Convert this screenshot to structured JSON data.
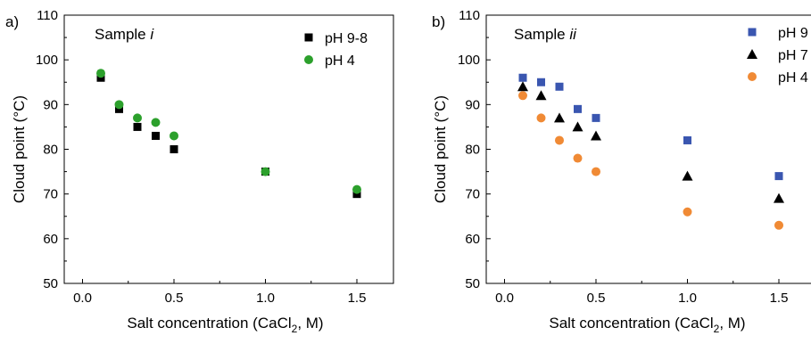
{
  "chart_data": [
    {
      "type": "scatter",
      "panel_label": "a)",
      "annotation": "Sample ",
      "annotation_italic": "i",
      "xlabel": "Salt concentration (CaCl",
      "xlabel_subscript": "2",
      "xlabel_suffix": ", M)",
      "ylabel": "Cloud point (°C)",
      "xlim": [
        -0.1,
        1.7
      ],
      "ylim": [
        50,
        110
      ],
      "xticks": [
        0.0,
        0.5,
        1.0,
        1.5
      ],
      "xtick_labels": [
        "0.0",
        "0.5",
        "1.0",
        "1.5"
      ],
      "yticks": [
        50,
        60,
        70,
        80,
        90,
        100,
        110
      ],
      "ytick_labels": [
        "50",
        "60",
        "70",
        "80",
        "90",
        "100",
        "110"
      ],
      "legend_position": "top-right",
      "grid": false,
      "series": [
        {
          "name": "pH 9-8",
          "marker": "square",
          "color": "#000000",
          "x": [
            0.1,
            0.2,
            0.3,
            0.4,
            0.5,
            1.0,
            1.5
          ],
          "y": [
            96,
            89,
            85,
            83,
            80,
            75,
            70
          ]
        },
        {
          "name": "pH 4",
          "marker": "circle",
          "color": "#2ca02c",
          "x": [
            0.1,
            0.2,
            0.3,
            0.4,
            0.5,
            1.0,
            1.5
          ],
          "y": [
            97,
            90,
            87,
            86,
            83,
            75,
            71
          ]
        }
      ]
    },
    {
      "type": "scatter",
      "panel_label": "b)",
      "annotation": "Sample ",
      "annotation_italic": "ii",
      "xlabel": "Salt concentration (CaCl",
      "xlabel_subscript": "2",
      "xlabel_suffix": ", M)",
      "ylabel": "Cloud point (°C)",
      "xlim": [
        -0.1,
        1.7
      ],
      "ylim": [
        50,
        110
      ],
      "xticks": [
        0.0,
        0.5,
        1.0,
        1.5
      ],
      "xtick_labels": [
        "0.0",
        "0.5",
        "1.0",
        "1.5"
      ],
      "yticks": [
        50,
        60,
        70,
        80,
        90,
        100,
        110
      ],
      "ytick_labels": [
        "50",
        "60",
        "70",
        "80",
        "90",
        "100",
        "110"
      ],
      "legend_position": "top-right",
      "grid": false,
      "series": [
        {
          "name": "pH 9",
          "marker": "square",
          "color": "#3a56b0",
          "x": [
            0.1,
            0.2,
            0.3,
            0.4,
            0.5,
            1.0,
            1.5
          ],
          "y": [
            96,
            95,
            94,
            89,
            87,
            82,
            74
          ]
        },
        {
          "name": "pH 7",
          "marker": "triangle",
          "color": "#000000",
          "x": [
            0.1,
            0.2,
            0.3,
            0.4,
            0.5,
            1.0,
            1.5
          ],
          "y": [
            94,
            92,
            87,
            85,
            83,
            74,
            69
          ]
        },
        {
          "name": "pH 4",
          "marker": "circle",
          "color": "#f08a35",
          "x": [
            0.1,
            0.2,
            0.3,
            0.4,
            0.5,
            1.0,
            1.5
          ],
          "y": [
            92,
            87,
            82,
            78,
            75,
            66,
            63
          ]
        }
      ]
    }
  ]
}
